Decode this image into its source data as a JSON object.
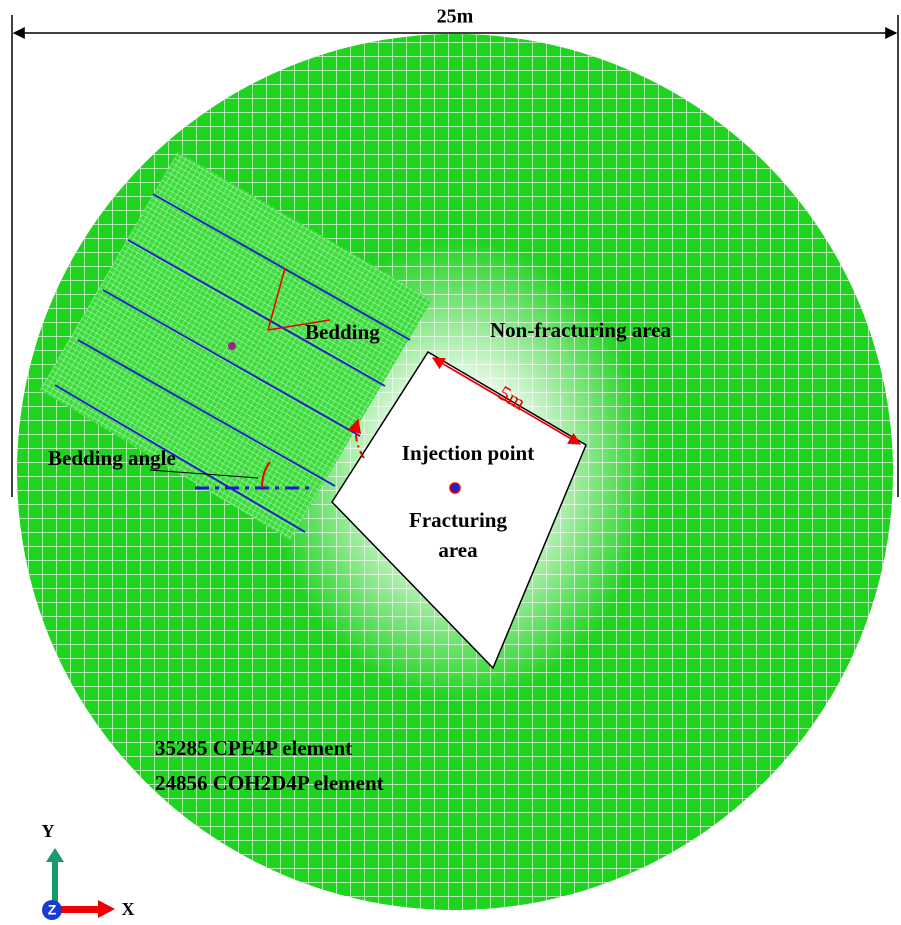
{
  "dimension": {
    "width_label": "25m",
    "side_label": "5m"
  },
  "labels": {
    "bedding": "Bedding",
    "non_fracturing": "Non-fracturing area",
    "injection": "Injection point",
    "fracturing": [
      "Fracturing",
      "area"
    ],
    "bedding_angle": "Bedding angle"
  },
  "element_counts": [
    "35285 CPE4P element",
    "24856 COH2D4P element"
  ],
  "axes": {
    "y": "Y",
    "z": "Z",
    "x": "X"
  }
}
